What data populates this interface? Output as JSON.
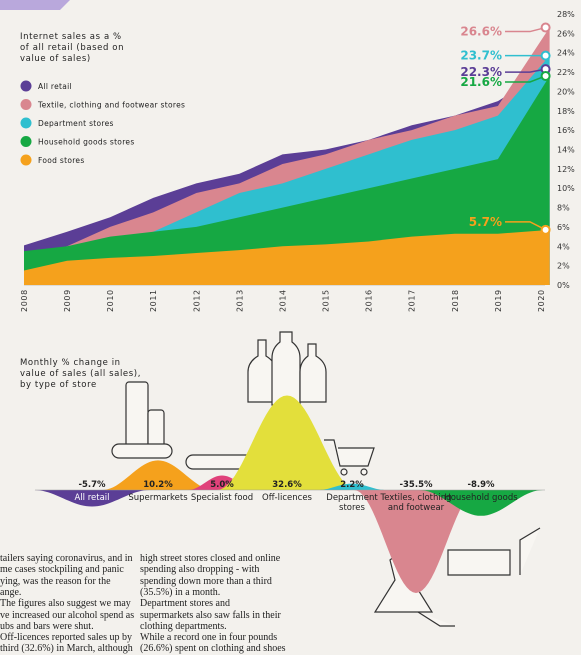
{
  "chart_data": [
    {
      "type": "area",
      "title": "Internet sales as a % of all retail (based on value of sales)",
      "x": [
        2008,
        2009,
        2010,
        2011,
        2012,
        2013,
        2014,
        2015,
        2016,
        2017,
        2018,
        2019,
        2020.2
      ],
      "xlim": [
        2008,
        2020.2
      ],
      "xticks": [
        2008,
        2009,
        2010,
        2011,
        2012,
        2013,
        2014,
        2015,
        2016,
        2017,
        2018,
        2019,
        2020
      ],
      "ylim": [
        0,
        28
      ],
      "yticks": [
        {
          "value": 0,
          "label": "0%"
        },
        {
          "value": 2,
          "label": "2%"
        },
        {
          "value": 4,
          "label": "4%"
        },
        {
          "value": 6,
          "label": "6%"
        },
        {
          "value": 8,
          "label": "8%"
        },
        {
          "value": 10,
          "label": "10%"
        },
        {
          "value": 12,
          "label": "12%"
        },
        {
          "value": 14,
          "label": "14%"
        },
        {
          "value": 16,
          "label": "16%"
        },
        {
          "value": 18,
          "label": "18%"
        },
        {
          "value": 20,
          "label": "20%"
        },
        {
          "value": 22,
          "label": "22%"
        },
        {
          "value": 24,
          "label": "24%"
        },
        {
          "value": 26,
          "label": "26%"
        },
        {
          "value": 28,
          "label": "28%"
        }
      ],
      "grid": false,
      "legend": "top-left",
      "series": [
        {
          "name": "All retail",
          "color": "#5b3e96",
          "values": [
            4.1,
            5.5,
            7,
            9,
            10.5,
            11.5,
            13.5,
            14,
            15,
            16.5,
            17.5,
            19,
            22.3
          ],
          "value_labels": [
            null,
            null,
            null,
            null,
            null,
            null,
            null,
            null,
            null,
            null,
            null,
            null,
            "22.3%"
          ]
        },
        {
          "name": "Textile, clothing and footwear stores",
          "color": "#d9868f",
          "values": [
            3,
            4,
            6,
            7.5,
            9.5,
            10.5,
            12.5,
            13.5,
            15,
            16,
            17.5,
            18.5,
            26.6
          ],
          "value_labels": [
            null,
            null,
            null,
            null,
            null,
            null,
            null,
            null,
            null,
            null,
            null,
            null,
            "26.6%"
          ]
        },
        {
          "name": "Department stores",
          "color": "#2fbfcf",
          "values": [
            2.5,
            3,
            4,
            5.5,
            7.5,
            9.5,
            10.5,
            12,
            13.5,
            15,
            16,
            17.5,
            23.7
          ],
          "value_labels": [
            null,
            null,
            null,
            null,
            null,
            null,
            null,
            null,
            null,
            null,
            null,
            null,
            "23.7%"
          ]
        },
        {
          "name": "Household goods stores",
          "color": "#16a843",
          "values": [
            3.5,
            4,
            5,
            5.5,
            6,
            7,
            8,
            9,
            10,
            11,
            12,
            13,
            21.6
          ],
          "value_labels": [
            null,
            null,
            null,
            null,
            null,
            null,
            null,
            null,
            null,
            null,
            null,
            null,
            "21.6%"
          ]
        },
        {
          "name": "Food stores",
          "color": "#f5a11c",
          "values": [
            1.5,
            2.5,
            2.8,
            3,
            3.3,
            3.6,
            4,
            4.2,
            4.5,
            5,
            5.3,
            5.3,
            5.7
          ],
          "value_labels": [
            null,
            null,
            null,
            null,
            null,
            null,
            null,
            null,
            null,
            null,
            null,
            null,
            "5.7%"
          ]
        }
      ]
    },
    {
      "type": "bell",
      "title": "Monthly % change in value of sales (all sales), by type of store",
      "categories": [
        "All retail",
        "Supermarkets",
        "Specialist food",
        "Off-licences",
        "Department stores",
        "Textiles, clothing and footwear",
        "Household goods"
      ],
      "values": [
        -5.7,
        10.2,
        5.0,
        32.6,
        2.2,
        -35.5,
        -8.9
      ],
      "value_labels": [
        "-5.7%",
        "10.2%",
        "5.0%",
        "32.6%",
        "2.2%",
        "-35.5%",
        "-8.9%"
      ],
      "colors": [
        "#5b3e96",
        "#f5a11c",
        "#e0417a",
        "#e3df3b",
        "#2fbfcf",
        "#d9868f",
        "#16a843"
      ]
    }
  ],
  "article": {
    "left_column": [
      "tailers saying coronavirus, and in",
      "me cases stockpiling and panic",
      "ying, was the reason for the",
      "ange.",
      "The figures also suggest we may",
      "ve increased our alcohol spend as",
      "ubs and bars were shut.",
      "Off-licences reported sales up by",
      "third (32.6%) in March, although"
    ],
    "right_column": [
      "high street stores closed and online",
      "spending also dropping - with",
      "spending down more than a third",
      "(35.5%) in a month.",
      "Department stores and",
      "supermarkets also saw falls in their",
      "clothing departments.",
      "While a record one in four pounds",
      "(26.6%) spent on clothing and shoes"
    ]
  }
}
